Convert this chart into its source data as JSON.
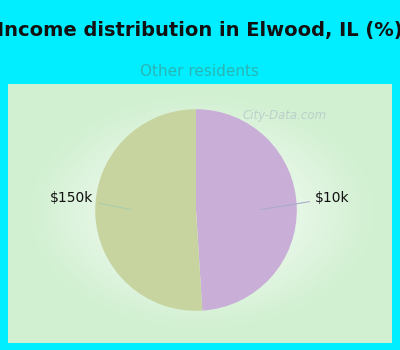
{
  "title": "Income distribution in Elwood, IL (%)",
  "subtitle": "Other residents",
  "title_color": "#111111",
  "subtitle_color": "#2ab5b5",
  "top_bg_color": "#00eeff",
  "chart_bg_color": "#f0f8f0",
  "slices": [
    {
      "label": "$10k",
      "value": 49,
      "color": "#c9aed8"
    },
    {
      "label": "$150k",
      "value": 51,
      "color": "#c8d4a0"
    }
  ],
  "watermark": "City-Data.com",
  "watermark_color": "#b8caca",
  "title_fontsize": 14,
  "subtitle_fontsize": 11,
  "label_fontsize": 10
}
